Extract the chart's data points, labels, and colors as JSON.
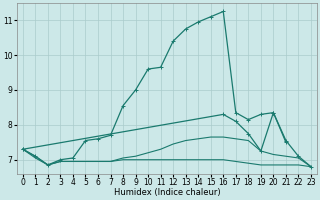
{
  "xlabel": "Humidex (Indice chaleur)",
  "bg_color": "#cce8e8",
  "line_color": "#1a7a6e",
  "grid_color": "#aacccc",
  "xlim": [
    -0.5,
    23.5
  ],
  "ylim": [
    6.6,
    11.5
  ],
  "xticks": [
    0,
    1,
    2,
    3,
    4,
    5,
    6,
    7,
    8,
    9,
    10,
    11,
    12,
    13,
    14,
    15,
    16,
    17,
    18,
    19,
    20,
    21,
    22,
    23
  ],
  "yticks": [
    7,
    8,
    9,
    10,
    11
  ],
  "series": [
    {
      "x": [
        0,
        1,
        2,
        3,
        4,
        5,
        6,
        7,
        8,
        9,
        10,
        11,
        12,
        13,
        14,
        15,
        16,
        17,
        18,
        19,
        20,
        21
      ],
      "y": [
        7.3,
        7.1,
        6.85,
        7.0,
        7.05,
        7.55,
        7.6,
        7.7,
        8.55,
        9.0,
        9.6,
        9.65,
        10.4,
        10.75,
        10.95,
        11.1,
        11.25,
        8.35,
        8.15,
        8.3,
        8.35,
        7.5
      ],
      "marker": "+",
      "lw": 0.9
    },
    {
      "x": [
        0,
        1,
        2,
        3,
        4,
        5,
        6,
        7,
        8,
        9,
        10,
        11,
        12,
        13,
        14,
        15,
        16,
        17,
        18,
        19,
        20,
        21,
        22,
        23
      ],
      "y": [
        7.3,
        7.05,
        6.85,
        6.95,
        6.95,
        6.95,
        6.95,
        6.95,
        7.0,
        7.0,
        7.0,
        7.0,
        7.0,
        7.0,
        7.0,
        7.0,
        7.0,
        6.95,
        6.9,
        6.85,
        6.85,
        6.85,
        6.85,
        6.8
      ],
      "marker": null,
      "lw": 0.8
    },
    {
      "x": [
        0,
        1,
        2,
        3,
        4,
        5,
        6,
        7,
        8,
        9,
        10,
        11,
        12,
        13,
        14,
        15,
        16,
        17,
        18,
        19,
        20,
        21,
        22,
        23
      ],
      "y": [
        7.3,
        7.1,
        6.85,
        6.95,
        6.95,
        6.95,
        6.95,
        6.95,
        7.05,
        7.1,
        7.2,
        7.3,
        7.45,
        7.55,
        7.6,
        7.65,
        7.65,
        7.6,
        7.55,
        7.25,
        7.15,
        7.1,
        7.05,
        6.8
      ],
      "marker": null,
      "lw": 0.8
    },
    {
      "x": [
        0,
        16,
        17,
        18,
        19,
        20,
        21,
        22,
        23
      ],
      "y": [
        7.3,
        8.3,
        8.1,
        7.75,
        7.25,
        8.35,
        7.55,
        7.1,
        6.8
      ],
      "marker": "+",
      "lw": 0.9
    }
  ]
}
